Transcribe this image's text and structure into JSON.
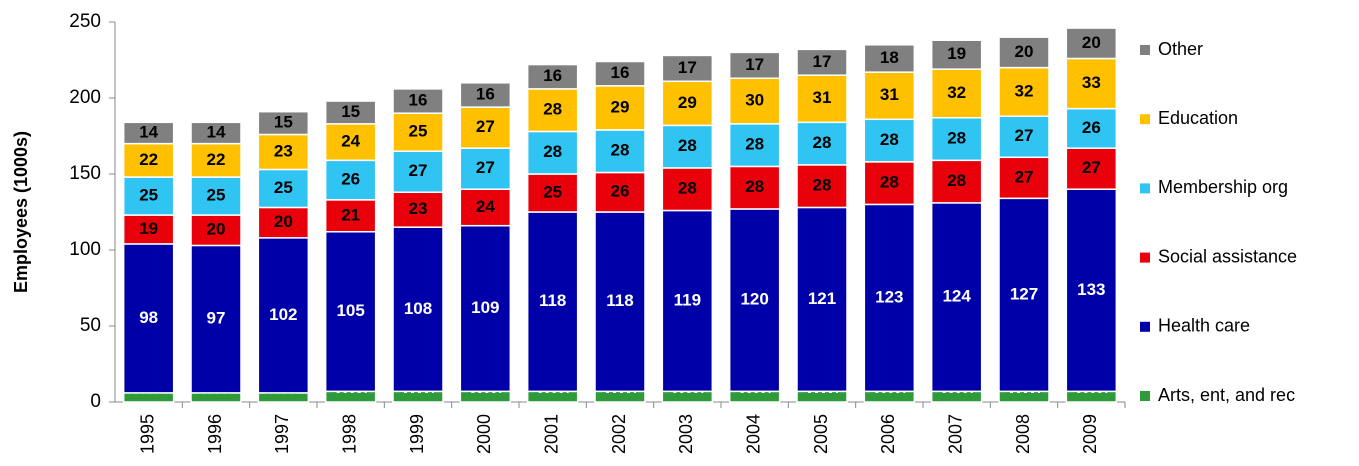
{
  "chart_data": {
    "type": "stacked_bar",
    "y_label": "Employees (1000s)",
    "categories": [
      "1995",
      "1996",
      "1997",
      "1998",
      "1999",
      "2000",
      "2001",
      "2002",
      "2003",
      "2004",
      "2005",
      "2006",
      "2007",
      "2008",
      "2009"
    ],
    "series": [
      {
        "name": "Arts, ent, and rec",
        "color": "#2e9a3a",
        "values": [
          6,
          6,
          6,
          7,
          7,
          7,
          7,
          7,
          7,
          7,
          7,
          7,
          7,
          7,
          7
        ]
      },
      {
        "name": "Health care",
        "color": "#0000a8",
        "values": [
          98,
          97,
          102,
          105,
          108,
          109,
          118,
          118,
          119,
          120,
          121,
          123,
          124,
          127,
          133
        ]
      },
      {
        "name": "Social assistance",
        "color": "#e8000b",
        "values": [
          19,
          20,
          20,
          21,
          23,
          24,
          25,
          26,
          28,
          28,
          28,
          28,
          28,
          27,
          27
        ]
      },
      {
        "name": "Membership org",
        "color": "#2fc4f2",
        "values": [
          25,
          25,
          25,
          26,
          27,
          27,
          28,
          28,
          28,
          28,
          28,
          28,
          28,
          27,
          26
        ]
      },
      {
        "name": "Education",
        "color": "#ffc000",
        "values": [
          22,
          22,
          23,
          24,
          25,
          27,
          28,
          29,
          29,
          30,
          31,
          31,
          32,
          32,
          33
        ]
      },
      {
        "name": "Other",
        "color": "#808080",
        "values": [
          14,
          14,
          15,
          15,
          16,
          16,
          16,
          16,
          17,
          17,
          17,
          18,
          19,
          20,
          20
        ]
      }
    ],
    "ylim": [
      0,
      250
    ],
    "yticks": [
      0,
      50,
      100,
      150,
      200,
      250
    ],
    "legend": "right"
  }
}
